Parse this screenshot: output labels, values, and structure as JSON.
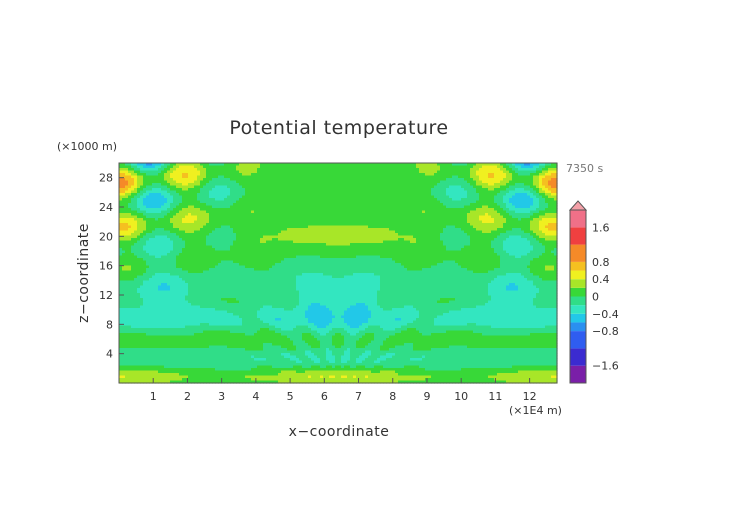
{
  "chart_data": {
    "type": "heatmap",
    "title": "Potential temperature",
    "xlabel": "x−coordinate",
    "ylabel": "z−coordinate",
    "x_unit": "(×1E4 m)",
    "y_unit": "(×1000 m)",
    "time_label": "7350 s",
    "xlim": [
      0,
      12.8
    ],
    "ylim": [
      0,
      30
    ],
    "x_ticks": [
      1,
      2,
      3,
      4,
      5,
      6,
      7,
      8,
      9,
      10,
      11,
      12
    ],
    "y_ticks": [
      4,
      8,
      12,
      16,
      20,
      24,
      28
    ],
    "colorbar": {
      "tick_values": [
        1.6,
        0.8,
        0.4,
        0,
        -0.4,
        -0.8,
        -1.6
      ],
      "tick_labels": [
        "1.6",
        "0.8",
        "0.4",
        "0",
        "−0.4",
        "−0.8",
        "−1.6"
      ],
      "levels": [
        -2.0,
        -1.6,
        -1.2,
        -0.8,
        -0.6,
        -0.4,
        -0.2,
        0,
        0.2,
        0.4,
        0.6,
        0.8,
        1.2,
        1.6,
        2.0
      ],
      "colors": [
        "#7a1fa8",
        "#3b2bd0",
        "#2f5df0",
        "#2a90f0",
        "#22c8e8",
        "#33e6c0",
        "#30dd88",
        "#38d838",
        "#a8e628",
        "#f0f020",
        "#f5c020",
        "#f58a28",
        "#f04040",
        "#f07088"
      ],
      "extend_max": true
    },
    "field_description_values": {
      "x_center": 6.4,
      "background": 0.05
    }
  }
}
